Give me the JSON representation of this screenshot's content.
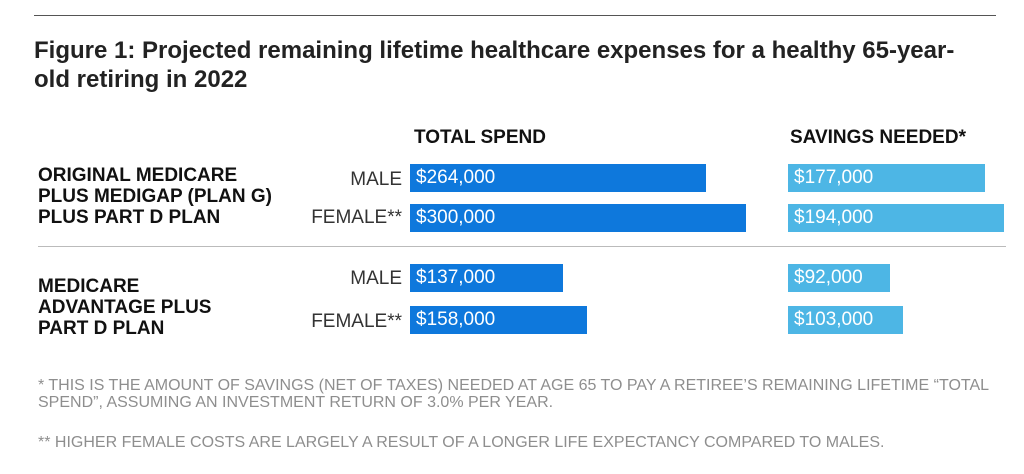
{
  "title": "Figure 1: Projected remaining lifetime healthcare expenses for a healthy 65-year-old retiring in 2022",
  "colors": {
    "total": "#0e78dc",
    "savings": "#4db6e5"
  },
  "chart_data": {
    "type": "bar",
    "orientation": "horizontal",
    "column_headers": [
      "TOTAL SPEND",
      "SAVINGS NEEDED*"
    ],
    "groups": [
      {
        "label": "ORIGINAL MEDICARE PLUS MEDIGAP (PLAN G) PLUS PART D PLAN",
        "label_lines": [
          "ORIGINAL MEDICARE",
          "PLUS MEDIGAP (PLAN G)",
          "PLUS PART D PLAN"
        ],
        "rows": [
          {
            "label": "MALE",
            "total": 264000,
            "total_label": "$264,000",
            "savings": 177000,
            "savings_label": "$177,000"
          },
          {
            "label": "FEMALE**",
            "total": 300000,
            "total_label": "$300,000",
            "savings": 194000,
            "savings_label": "$194,000"
          }
        ]
      },
      {
        "label": "MEDICARE ADVANTAGE PLUS PART D PLAN",
        "label_lines": [
          "MEDICARE",
          "ADVANTAGE PLUS",
          "PART D PLAN"
        ],
        "rows": [
          {
            "label": "MALE",
            "total": 137000,
            "total_label": "$137,000",
            "savings": 92000,
            "savings_label": "$92,000"
          },
          {
            "label": "FEMALE**",
            "total": 158000,
            "total_label": "$158,000",
            "savings": 103000,
            "savings_label": "$103,000"
          }
        ]
      }
    ],
    "series": [
      {
        "name": "TOTAL SPEND",
        "values": [
          264000,
          300000,
          137000,
          158000
        ]
      },
      {
        "name": "SAVINGS NEEDED*",
        "values": [
          177000,
          194000,
          92000,
          103000
        ]
      }
    ]
  },
  "footnotes": [
    "* THIS IS THE AMOUNT OF SAVINGS (NET OF TAXES) NEEDED AT AGE 65 TO PAY A RETIREE’S REMAINING LIFETIME “TOTAL SPEND”, ASSUMING AN INVESTMENT RETURN OF 3.0% PER YEAR.",
    "** HIGHER FEMALE COSTS ARE LARGELY A RESULT OF A LONGER LIFE EXPECTANCY COMPARED TO MALES."
  ]
}
